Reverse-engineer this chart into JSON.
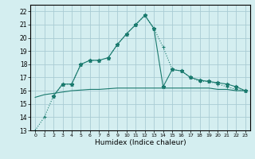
{
  "title": "",
  "xlabel": "Humidex (Indice chaleur)",
  "ylabel": "",
  "bg_color": "#d4eef0",
  "grid_color": "#aaccd4",
  "line_color": "#1a7a6e",
  "x_ticks": [
    0,
    1,
    2,
    3,
    4,
    5,
    6,
    7,
    8,
    9,
    10,
    11,
    12,
    13,
    14,
    15,
    16,
    17,
    18,
    19,
    20,
    21,
    22,
    23
  ],
  "ylim": [
    13,
    22.5
  ],
  "xlim": [
    -0.5,
    23.5
  ],
  "yticks": [
    13,
    14,
    15,
    16,
    17,
    18,
    19,
    20,
    21,
    22
  ],
  "series": [
    {
      "x": [
        0,
        1,
        2,
        3,
        4,
        5,
        6,
        7,
        8,
        9,
        10,
        11,
        12,
        13,
        14,
        15,
        16,
        17,
        18,
        19,
        20,
        21,
        22,
        23
      ],
      "y": [
        13.0,
        14.0,
        15.6,
        16.5,
        16.5,
        18.0,
        18.3,
        18.3,
        18.5,
        19.5,
        20.3,
        21.0,
        21.7,
        20.7,
        19.3,
        17.6,
        17.5,
        17.0,
        16.7,
        16.7,
        16.5,
        16.3,
        16.1,
        16.0
      ],
      "style": "dotted",
      "marker": "+"
    },
    {
      "x": [
        2,
        3,
        4,
        5,
        6,
        7,
        8,
        9,
        10,
        11,
        12,
        13,
        14,
        15,
        16,
        17,
        18,
        19,
        20,
        21,
        22,
        23
      ],
      "y": [
        15.6,
        16.5,
        16.5,
        18.0,
        18.3,
        18.3,
        18.5,
        19.5,
        20.3,
        21.0,
        21.7,
        20.7,
        16.3,
        17.6,
        17.5,
        17.0,
        16.8,
        16.7,
        16.6,
        16.5,
        16.3,
        16.0
      ],
      "style": "solid",
      "marker": "*"
    },
    {
      "x": [
        0,
        1,
        2,
        3,
        4,
        5,
        6,
        7,
        8,
        9,
        10,
        11,
        12,
        13,
        14,
        15,
        16,
        17,
        18,
        19,
        20,
        21,
        22,
        23
      ],
      "y": [
        15.5,
        15.7,
        15.8,
        15.9,
        16.0,
        16.05,
        16.1,
        16.1,
        16.15,
        16.2,
        16.2,
        16.2,
        16.2,
        16.2,
        16.2,
        16.2,
        16.2,
        16.2,
        16.2,
        16.2,
        16.1,
        16.1,
        16.0,
        16.0
      ],
      "style": "solid",
      "marker": null
    }
  ]
}
